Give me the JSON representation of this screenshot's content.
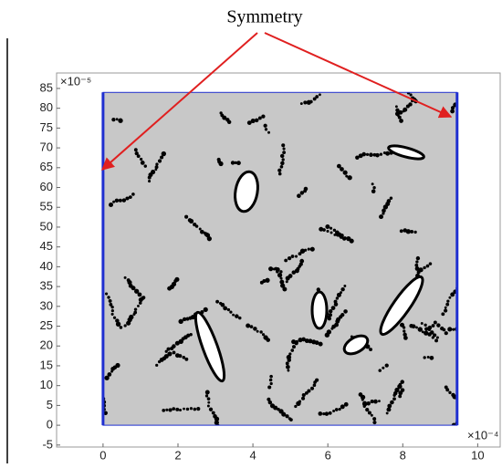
{
  "chart_data": {
    "type": "geometry",
    "annotation": "Symmetry",
    "x_exponent": "×10⁻⁴",
    "y_exponent": "×10⁻⁵",
    "xlim": [
      -1.24,
      10.6
    ],
    "ylim": [
      -5.5,
      88.9
    ],
    "xticks": [
      0,
      2,
      4,
      6,
      8,
      10
    ],
    "yticks": [
      -5,
      0,
      5,
      10,
      15,
      20,
      25,
      30,
      35,
      40,
      45,
      50,
      55,
      60,
      65,
      70,
      75,
      80,
      85
    ],
    "domain": {
      "x": [
        0,
        9.45
      ],
      "y": [
        0,
        84
      ]
    },
    "color": "#1f2fd0"
  }
}
